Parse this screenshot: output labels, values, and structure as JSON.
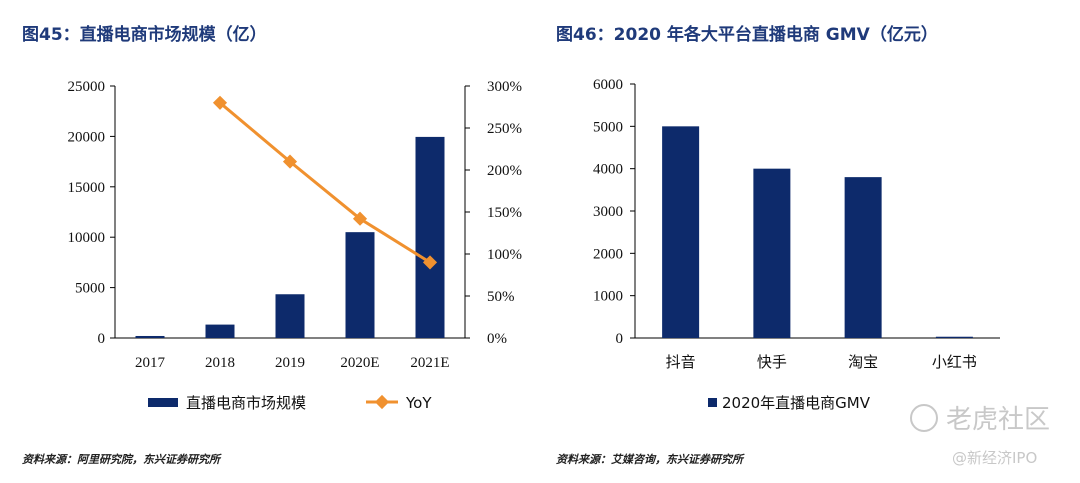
{
  "chart_data": [
    {
      "type": "bar",
      "title": "图45：直播电商市场规模（亿）",
      "categories": [
        "2017",
        "2018",
        "2019",
        "2020E",
        "2021E"
      ],
      "series": [
        {
          "name": "直播电商市场规模",
          "type": "bar",
          "axis": "left",
          "values": [
            200,
            1330,
            4340,
            10500,
            19950
          ],
          "color": "#0d2a6b"
        },
        {
          "name": "YoY",
          "type": "line",
          "axis": "right",
          "values": [
            null,
            2.8,
            2.1,
            1.42,
            0.9
          ],
          "color": "#f0912f"
        }
      ],
      "ylim": [
        0,
        25000
      ],
      "yticks": [
        "25000",
        "20000",
        "15000",
        "10000",
        "5000",
        "0"
      ],
      "y2lim": [
        0,
        3
      ],
      "y2ticks": [
        "300%",
        "250%",
        "200%",
        "150%",
        "100%",
        "50%",
        "0%"
      ],
      "legend": "bottom",
      "source": "资料来源：阿里研究院，东兴证券研究所"
    },
    {
      "type": "bar",
      "title": "图46：2020 年各大平台直播电商 GMV（亿元）",
      "categories": [
        "抖音",
        "快手",
        "淘宝",
        "小红书"
      ],
      "series": [
        {
          "name": "2020年直播电商GMV",
          "values": [
            5000,
            4000,
            3800,
            30
          ],
          "color": "#0d2a6b"
        }
      ],
      "ylim": [
        0,
        6000
      ],
      "yticks": [
        "6000",
        "5000",
        "4000",
        "3000",
        "2000",
        "1000",
        "0"
      ],
      "legend": "bottom",
      "source": "资料来源：艾媒咨询，东兴证券研究所"
    }
  ],
  "watermark": {
    "main": "老虎社区",
    "sub": "@新经济IPO"
  }
}
